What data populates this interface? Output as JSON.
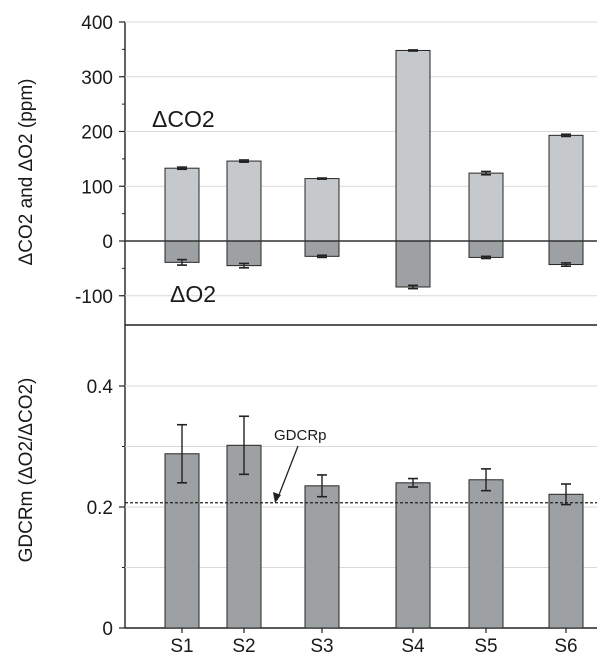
{
  "chart_data": [
    {
      "type": "bar",
      "categories": [
        "S1",
        "S2",
        "S3",
        "S4",
        "S5",
        "S6"
      ],
      "series": [
        {
          "name": "ΔCO2",
          "values": [
            133,
            146,
            114,
            348,
            124,
            193
          ],
          "errors": [
            2,
            2,
            1,
            1,
            3,
            2
          ]
        },
        {
          "name": "ΔO2",
          "values": [
            -39,
            -45,
            -28,
            -84,
            -30,
            -43
          ],
          "errors": [
            5,
            4,
            2,
            3,
            2,
            3
          ]
        }
      ],
      "ylabel": "ΔCO2 and ΔO2 (ppm)",
      "ylim": [
        -150,
        400
      ],
      "yticks": [
        "400",
        "300",
        "200",
        "100",
        "0",
        "-100"
      ],
      "annotations": [
        "ΔCO2",
        "ΔO2"
      ],
      "grid": true,
      "colors": {
        "co2": "#c5c9cb",
        "o2": "#9da1a3",
        "edge": "#262626"
      }
    },
    {
      "type": "bar",
      "categories": [
        "S1",
        "S2",
        "S3",
        "S4",
        "S5",
        "S6"
      ],
      "series": [
        {
          "values": [
            0.288,
            0.302,
            0.235,
            0.24,
            0.245,
            0.221
          ],
          "errors": [
            0.048,
            0.048,
            0.018,
            0.007,
            0.018,
            0.017
          ]
        }
      ],
      "reference_line": {
        "label": "GDCRp",
        "value": 0.207
      },
      "ylabel": "GDCRm (ΔO2/ΔCO2)",
      "ylim": [
        0,
        0.52
      ],
      "yticks": [
        "0.4",
        "0.2",
        "0"
      ],
      "xticklabels": [
        "S1",
        "S2",
        "S3",
        "S4",
        "S5",
        "S6"
      ],
      "grid": true,
      "colors": {
        "bar": "#9da1a3",
        "edge": "#262626"
      }
    }
  ]
}
